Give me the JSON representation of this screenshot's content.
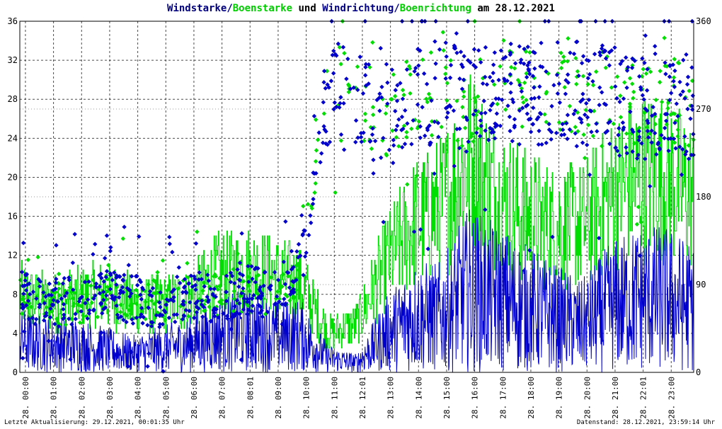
{
  "title": {
    "part1": "Windstarke",
    "sep1": "/",
    "part2": "Boenstarke",
    "mid": " und ",
    "part3": "Windrichtung",
    "sep2": "/",
    "part4": "Boenrichtung",
    "tail": " am 28.12.2021"
  },
  "colors": {
    "wind": "#0000cc",
    "gust": "#00dd00",
    "title_dark": "#000080",
    "grid": "#000000",
    "background": "#ffffff"
  },
  "footer": {
    "left": "Letzte Aktualisierung: 29.12.2021, 00:01:35 Uhr",
    "right": "Datenstand: 28.12.2021, 23:59:14 Uhr"
  },
  "chart_data": {
    "type": "line",
    "x_unit": "hour of day",
    "xlim": [
      0,
      24
    ],
    "ylim_left": [
      0,
      36
    ],
    "ylim_right": [
      0,
      360
    ],
    "y_ticks_left": [
      "0",
      "4",
      "8",
      "12",
      "16",
      "20",
      "24",
      "28",
      "32",
      "36"
    ],
    "y_ticks_right": [
      "0",
      "90",
      "180",
      "270",
      "360"
    ],
    "x_tick_labels": [
      "28. 00:00",
      "28. 01:00",
      "28. 02:00",
      "28. 03:00",
      "28. 04:00",
      "28. 05:00",
      "28. 06:00",
      "28. 07:00",
      "28. 08:01",
      "28. 09:00",
      "28. 10:00",
      "28. 11:00",
      "28. 12:01",
      "28. 13:00",
      "28. 14:00",
      "28. 15:00",
      "28. 16:00",
      "28. 17:00",
      "28. 18:00",
      "28. 19:00",
      "28. 20:00",
      "28. 21:00",
      "28. 22:01",
      "28. 23:00"
    ],
    "grid": "dashed",
    "series": [
      {
        "name": "Windstarke",
        "kind": "line",
        "axis": "left",
        "x": [
          0,
          1,
          2,
          3,
          4,
          5,
          6,
          7,
          8,
          9,
          10,
          11,
          12,
          13,
          14,
          15,
          16,
          17,
          18,
          19,
          20,
          21,
          22,
          23,
          24
        ],
        "y": [
          3.5,
          3,
          3,
          2.5,
          2,
          2.5,
          3,
          4,
          4.5,
          4,
          4,
          1.5,
          1,
          4,
          6,
          6,
          9,
          8,
          7,
          6,
          5,
          7,
          8,
          8,
          7
        ]
      },
      {
        "name": "Boenstarke",
        "kind": "line",
        "axis": "left",
        "x": [
          0,
          1,
          2,
          3,
          4,
          5,
          6,
          7,
          8,
          9,
          10,
          11,
          12,
          13,
          14,
          15,
          16,
          17,
          18,
          19,
          20,
          21,
          22,
          23,
          24
        ],
        "y": [
          8,
          7,
          7.5,
          8,
          7,
          7,
          7.5,
          10,
          10.5,
          10,
          9,
          4,
          5,
          11,
          15,
          17,
          22,
          18,
          16,
          15,
          15,
          18,
          20,
          20,
          18
        ]
      },
      {
        "name": "Windrichtung",
        "kind": "scatter",
        "axis": "right",
        "x": [
          0,
          1,
          2,
          3,
          4,
          5,
          6,
          7,
          8,
          9,
          10,
          11,
          12,
          13,
          14,
          15,
          16,
          17,
          18,
          19,
          20,
          21,
          22,
          23,
          24
        ],
        "y": [
          80,
          70,
          75,
          80,
          75,
          70,
          80,
          75,
          85,
          80,
          110,
          290,
          270,
          260,
          280,
          290,
          280,
          295,
          280,
          290,
          285,
          280,
          270,
          280,
          270
        ]
      },
      {
        "name": "Boenrichtung",
        "kind": "scatter",
        "axis": "right",
        "x": [
          0,
          1,
          2,
          3,
          4,
          5,
          6,
          7,
          8,
          9,
          10,
          11,
          12,
          13,
          14,
          15,
          16,
          17,
          18,
          19,
          20,
          21,
          22,
          23,
          24
        ],
        "y": [
          75,
          70,
          70,
          80,
          75,
          72,
          78,
          80,
          82,
          80,
          100,
          300,
          275,
          265,
          280,
          290,
          270,
          300,
          290,
          290,
          280,
          285,
          275,
          285,
          270
        ]
      }
    ]
  }
}
